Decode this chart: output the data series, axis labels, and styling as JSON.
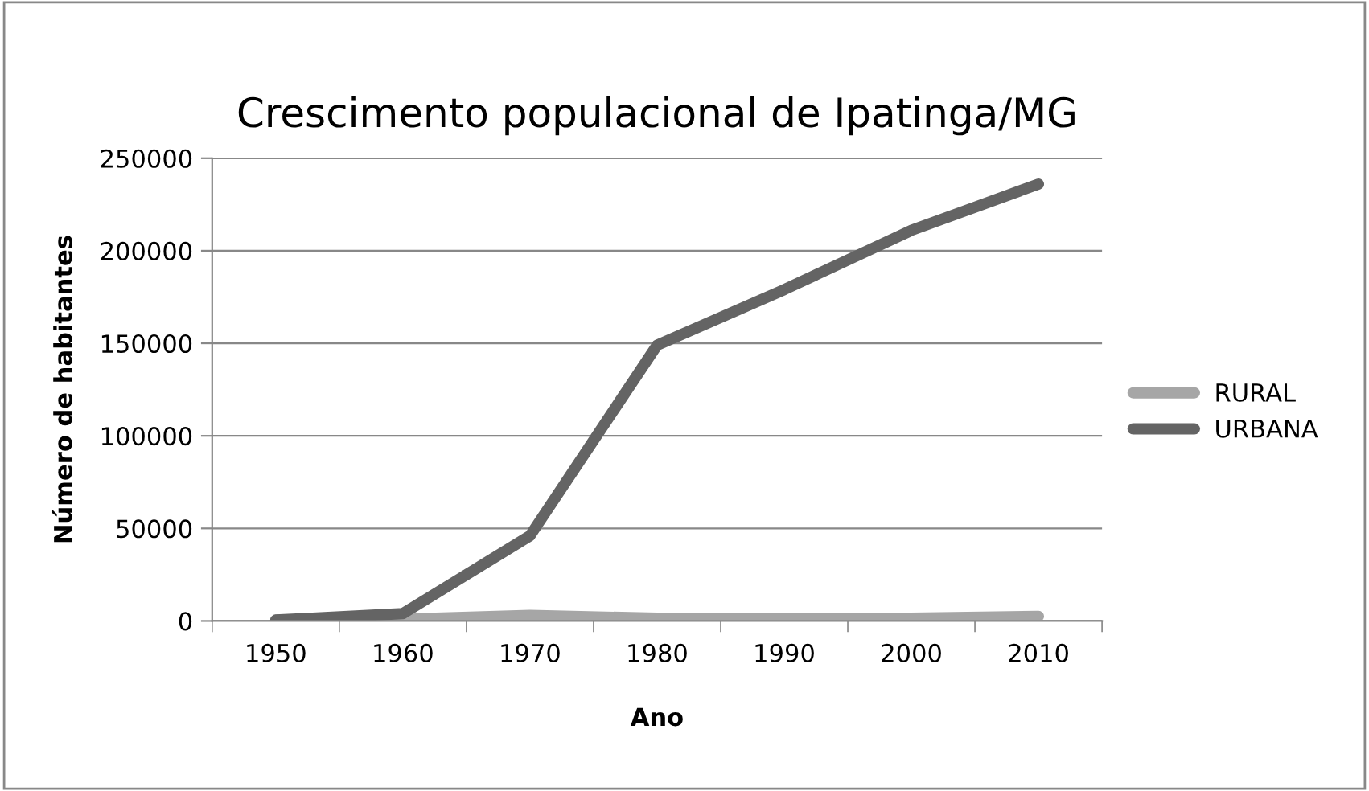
{
  "chart_data": {
    "type": "line",
    "title": "Crescimento populacional de Ipatinga/MG",
    "xlabel": "Ano",
    "ylabel": "Número de habitantes",
    "categories": [
      "1950",
      "1960",
      "1970",
      "1980",
      "1990",
      "2000",
      "2010"
    ],
    "series": [
      {
        "name": "RURAL",
        "color": "#a6a6a6",
        "values": [
          500,
          1000,
          3000,
          1500,
          1500,
          1500,
          2500
        ]
      },
      {
        "name": "URBANA",
        "color": "#646464",
        "values": [
          500,
          4000,
          46000,
          149000,
          179000,
          211000,
          236000
        ]
      }
    ],
    "ylim": [
      0,
      250000
    ],
    "yticks": [
      0,
      50000,
      100000,
      150000,
      200000,
      250000
    ],
    "grid": "y",
    "legend": "right",
    "marker": "none",
    "line_style": "solid"
  }
}
